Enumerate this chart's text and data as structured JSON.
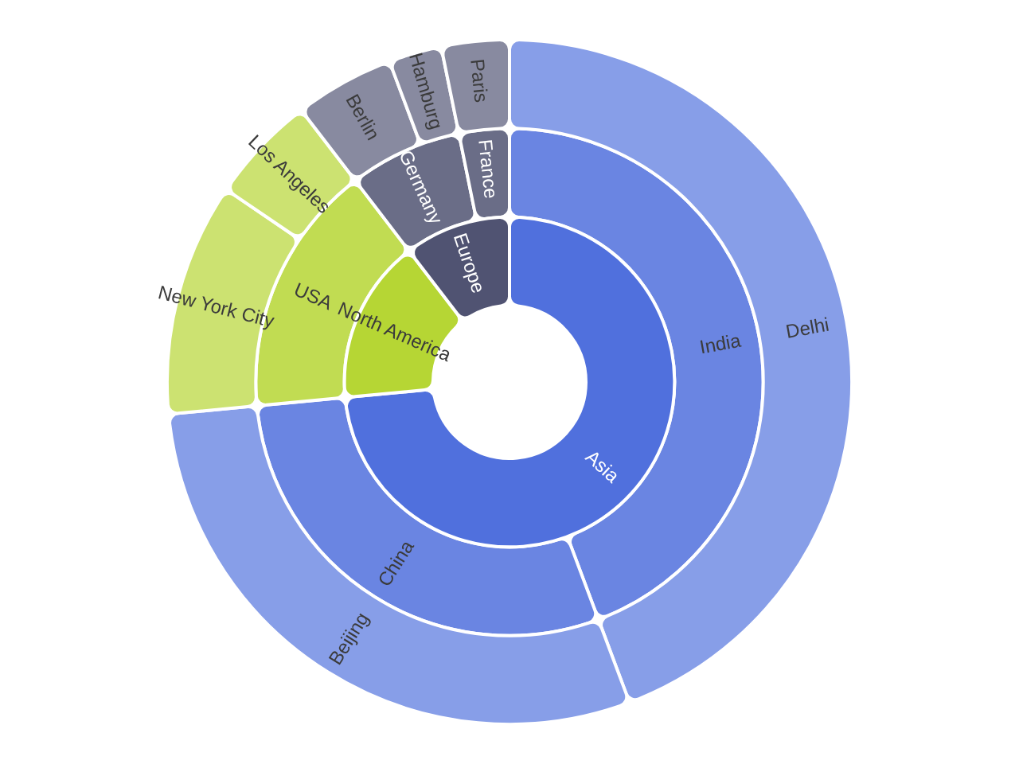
{
  "chart_data": [
    {
      "type": "donut",
      "categories": [
        "Asia",
        "North America",
        "Europe"
      ],
      "values": [
        73.5,
        16.1,
        10.4
      ],
      "colors": [
        "#5070dd",
        "#b6d634",
        "#505372"
      ]
    },
    {
      "type": "donut",
      "categories": [
        "India",
        "China",
        "USA",
        "Germany",
        "France"
      ],
      "values": [
        44.3,
        29.2,
        16.1,
        7.2,
        3.2
      ],
      "colors": [
        "#6a85e2",
        "#6a85e2",
        "#c1dc52",
        "#6a6d87",
        "#6a6d87"
      ]
    },
    {
      "type": "donut",
      "categories": [
        "Delhi",
        "Beijing",
        "New York City",
        "Los Angeles",
        "Berlin",
        "Hamburg",
        "Paris"
      ],
      "values": [
        44.3,
        29.2,
        11.0,
        5.1,
        4.7,
        2.5,
        3.2
      ],
      "colors": [
        "#879ee8",
        "#879ee8",
        "#cce271",
        "#cce271",
        "#888aa0",
        "#888aa0",
        "#888aa0"
      ]
    }
  ]
}
